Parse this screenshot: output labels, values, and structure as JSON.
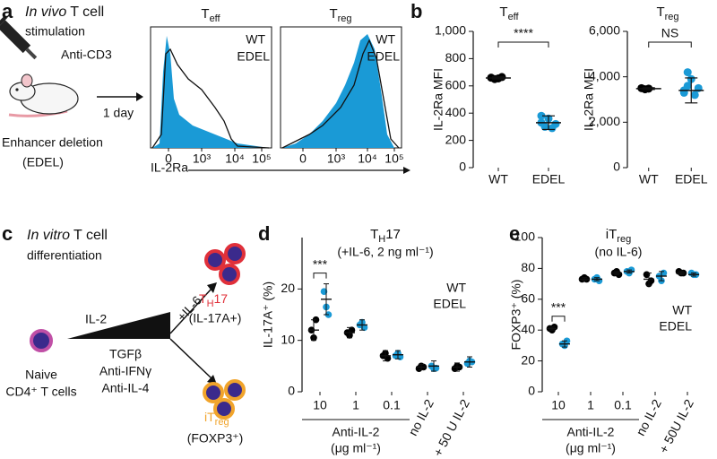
{
  "figure": {
    "panel_labels": [
      "a",
      "b",
      "c",
      "d",
      "e"
    ],
    "a": {
      "heading": [
        "In vivo",
        "T cell",
        "stimulation"
      ],
      "drug": "Anti-CD3",
      "mouse_label": [
        "Enhancer deletion",
        "(EDEL)"
      ],
      "arrow_label": "1 day",
      "xlabel": "IL-2Ra",
      "histograms": [
        {
          "title": "T",
          "title_sub": "eff",
          "legend": [
            "WT",
            "EDEL"
          ],
          "xticks": [
            "0",
            "10³",
            "10⁴",
            "10⁵"
          ]
        },
        {
          "title": "T",
          "title_sub": "reg",
          "legend": [
            "WT",
            "EDEL"
          ],
          "xticks": [
            "0",
            "10³",
            "10⁴",
            "10⁵"
          ]
        }
      ]
    },
    "c": {
      "heading": [
        "In vitro",
        "T cell",
        "differentiation"
      ],
      "naive": [
        "Naive",
        "CD4⁺ T cells"
      ],
      "il2": "IL-2",
      "il6": "+IL-6",
      "cocktail": [
        "TGFβ",
        "Anti-IFNγ",
        "Anti-IL-4"
      ],
      "th17": {
        "name": "T",
        "sub": "H",
        "suffix": "17",
        "marker": "(IL-17A+)"
      },
      "itreg": {
        "name": "iT",
        "sub": "reg",
        "marker": "(FOXP3⁺)"
      }
    }
  },
  "chart_data": [
    {
      "type": "dot",
      "title": "T",
      "title_sub": "eff",
      "ylabel": "IL-2Ra MFI",
      "ylim": [
        0,
        1000
      ],
      "yticks": [
        0,
        200,
        400,
        600,
        800,
        {
          "value": 1000,
          "label": "1,000"
        }
      ],
      "annotation": "****",
      "series": [
        {
          "name": "WT",
          "color": "#000000",
          "values": [
            660,
            650,
            655,
            665
          ],
          "mean": 658,
          "error": 8
        },
        {
          "name": "EDEL",
          "color": "#1a9ad6",
          "values": [
            330,
            300,
            360,
            290,
            320,
            380
          ],
          "mean": 330,
          "error": 50
        }
      ]
    },
    {
      "type": "dot",
      "title": "T",
      "title_sub": "reg",
      "ylabel": "IL-2Ra MFI",
      "ylim": [
        0,
        6000
      ],
      "yticks": [
        0,
        {
          "value": 2000,
          "label": "2,000"
        },
        {
          "value": 4000,
          "label": "4,000"
        },
        {
          "value": 6000,
          "label": "6,000"
        }
      ],
      "annotation": "NS",
      "series": [
        {
          "name": "WT",
          "color": "#000000",
          "values": [
            3500,
            3450,
            3480
          ],
          "mean": 3480,
          "error": 40
        },
        {
          "name": "EDEL",
          "color": "#1a9ad6",
          "values": [
            3300,
            3600,
            3900,
            3200,
            3500,
            3400,
            4200
          ],
          "mean": 3400,
          "error": 550
        }
      ]
    },
    {
      "type": "grouped_dot",
      "title": "T",
      "title_sub": "H",
      "title_suffix": "17",
      "subtitle": "(+IL-6, 2 ng ml⁻¹)",
      "ylabel": "IL-17A⁺ (%)",
      "categories": [
        "10",
        "1",
        "0.1",
        "no IL-2",
        "+ 50 U IL-2"
      ],
      "category_group": "Anti-IL-2",
      "category_group_unit": "(μg ml⁻¹)",
      "ylim": [
        0,
        30
      ],
      "yticks": [
        0,
        10,
        20
      ],
      "annotation": "***",
      "series": [
        {
          "name": "WT",
          "color": "#000000",
          "values": [
            [
              12,
              10.5,
              14
            ],
            [
              11.5,
              11,
              12
            ],
            [
              7,
              7.5,
              6.5
            ],
            [
              4.5,
              5,
              4.8
            ],
            [
              4.5,
              5,
              4.8
            ]
          ],
          "means": [
            12,
            11.5,
            7,
            4.8,
            4.8
          ],
          "errors": [
            2,
            1,
            1,
            0.5,
            0.8
          ]
        },
        {
          "name": "EDEL",
          "color": "#1a9ad6",
          "values": [
            [
              19.5,
              16.5,
              15
            ],
            [
              13,
              13.5,
              12.5
            ],
            [
              7,
              7.5,
              6.8
            ],
            [
              5,
              4.5,
              4.6
            ],
            [
              5.5,
              6,
              5.8
            ]
          ],
          "means": [
            18,
            13,
            7.2,
            5,
            5.8
          ],
          "errors": [
            3,
            1,
            0.8,
            1,
            1
          ]
        }
      ]
    },
    {
      "type": "grouped_dot",
      "title": "iT",
      "title_sub": "reg",
      "subtitle": "(no IL-6)",
      "ylabel": "FOXP3⁺ (%)",
      "categories": [
        "10",
        "1",
        "0.1",
        "no IL-2",
        "+ 50U IL-2"
      ],
      "category_group": "Anti-IL-2",
      "category_group_unit": "(μg ml⁻¹)",
      "ylim": [
        0,
        100
      ],
      "yticks": [
        0,
        20,
        40,
        60,
        80,
        100
      ],
      "annotation": "***",
      "series": [
        {
          "name": "WT",
          "color": "#000000",
          "values": [
            [
              41,
              40,
              42
            ],
            [
              73,
              74,
              73
            ],
            [
              77,
              78,
              76
            ],
            [
              76,
              70,
              72
            ],
            [
              78,
              77,
              77
            ]
          ],
          "means": [
            41,
            73,
            77,
            73,
            77
          ],
          "errors": [
            1,
            1,
            1,
            4,
            1
          ]
        },
        {
          "name": "EDEL",
          "color": "#1a9ad6",
          "values": [
            [
              31,
              30,
              33
            ],
            [
              73,
              74,
              72
            ],
            [
              78,
              77,
              79
            ],
            [
              75,
              72,
              77
            ],
            [
              77,
              76,
              76
            ]
          ],
          "means": [
            31,
            73,
            78,
            75,
            76
          ],
          "errors": [
            2,
            1,
            1,
            3,
            1
          ]
        }
      ]
    }
  ]
}
